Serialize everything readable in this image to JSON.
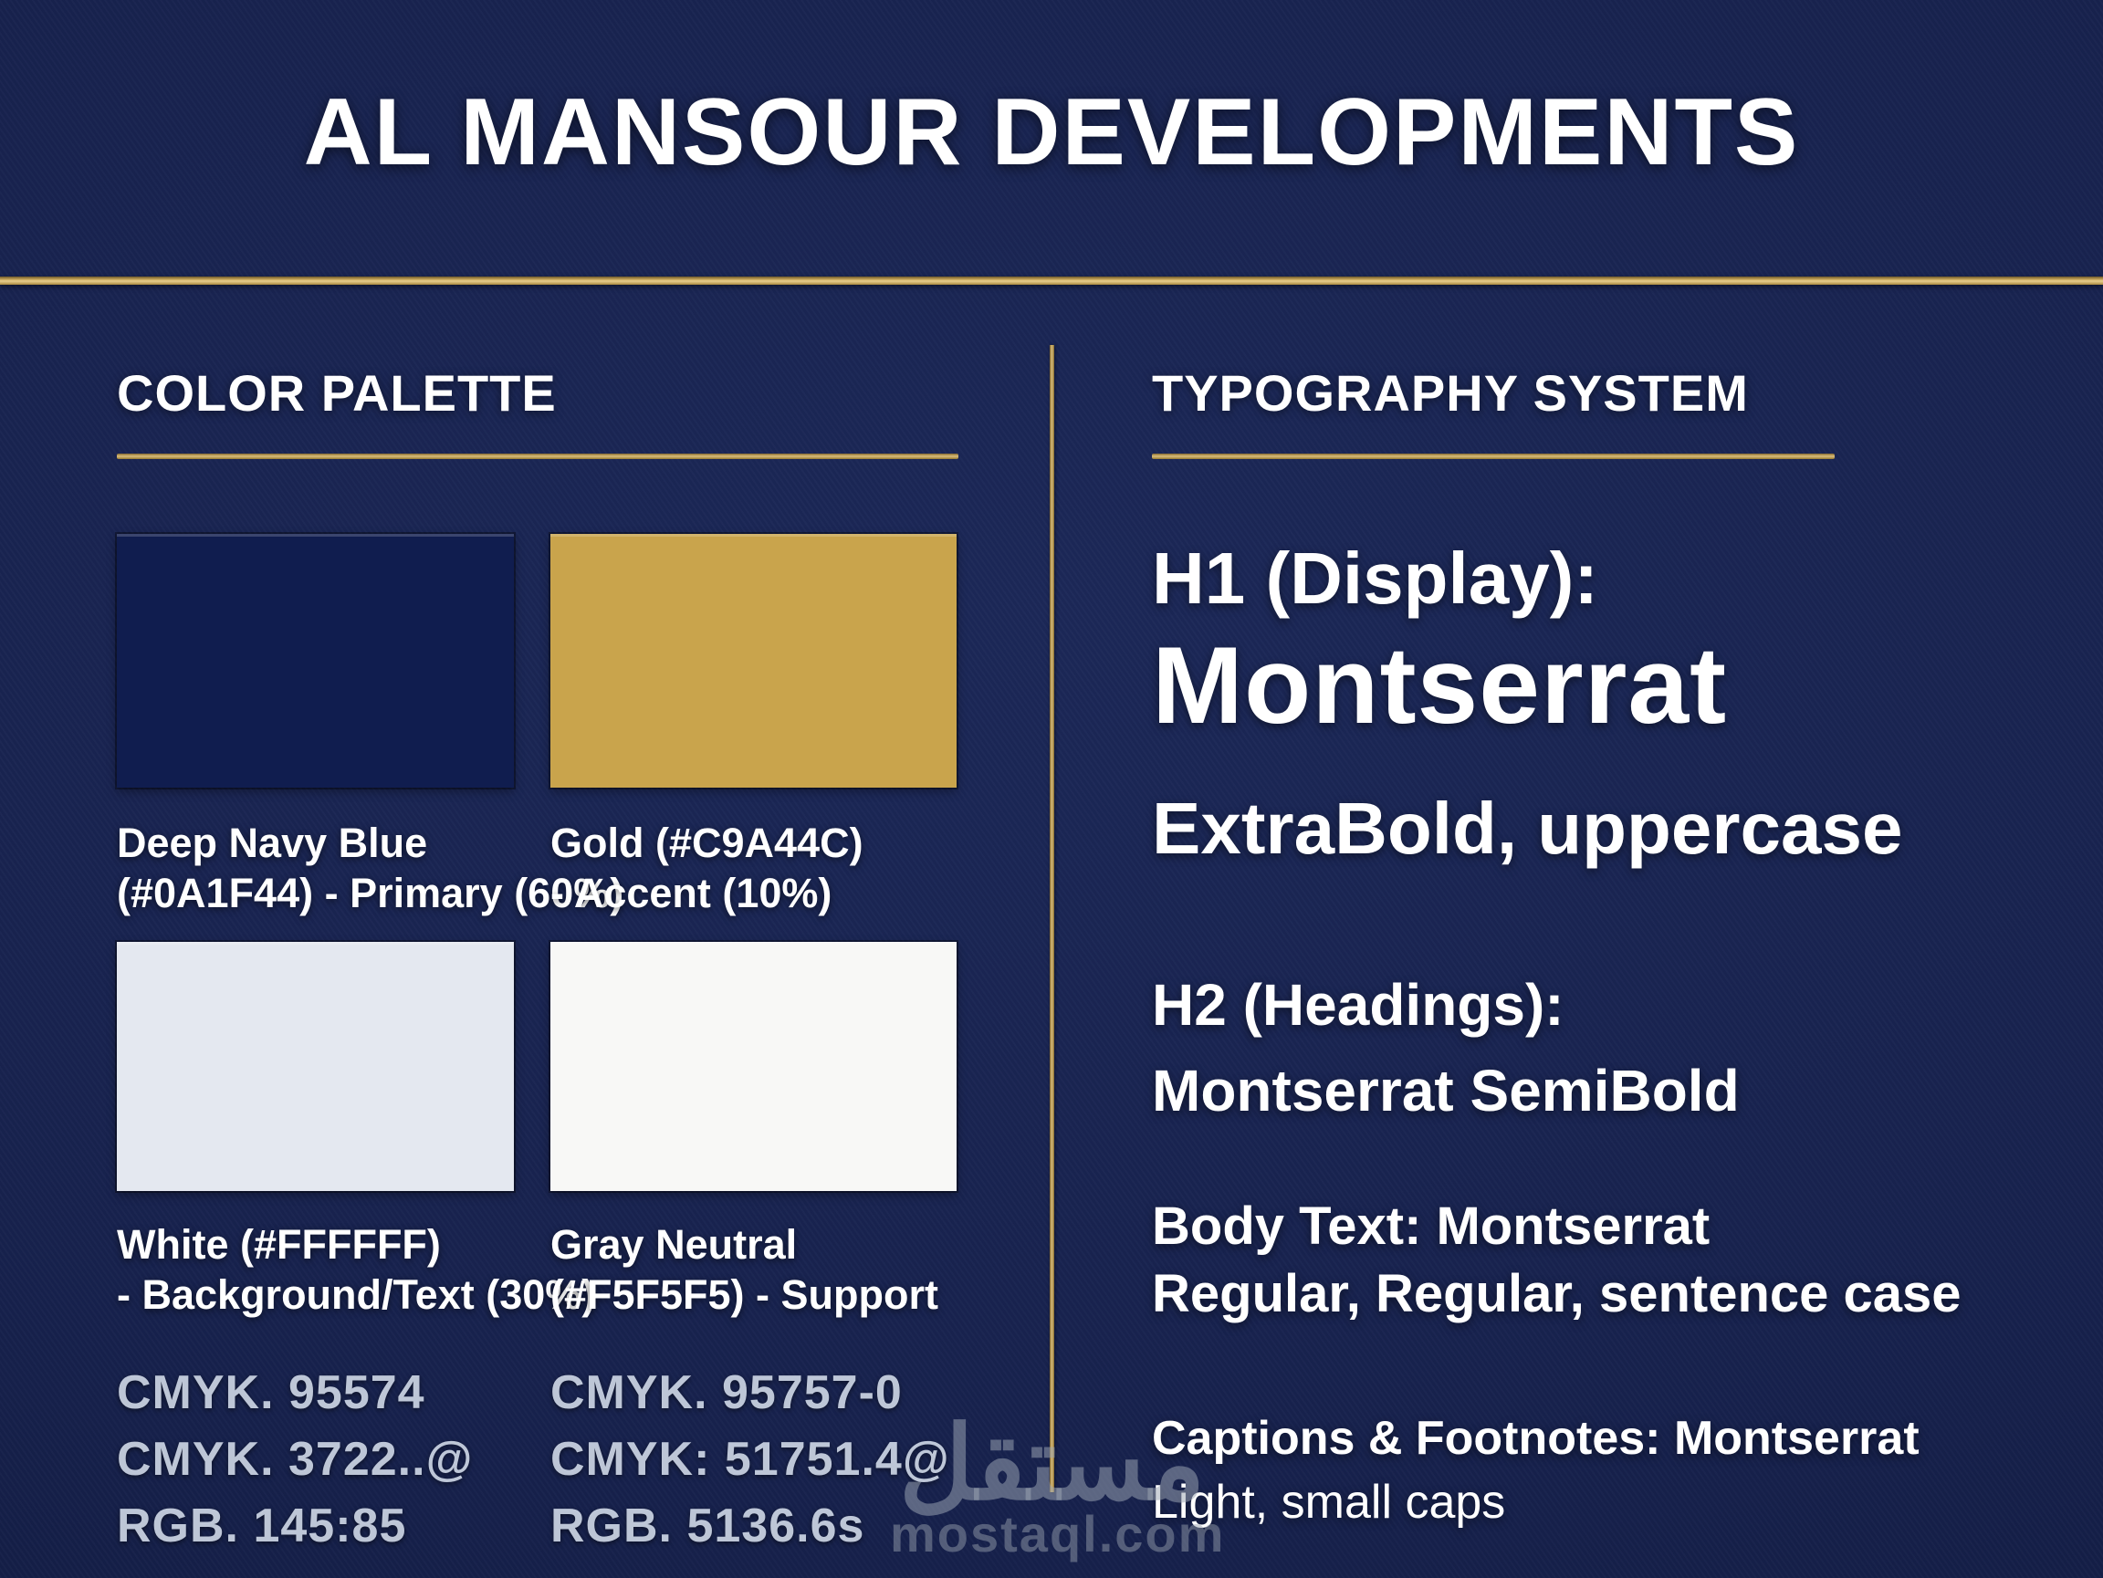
{
  "title": "AL MANSOUR DEVELOPMENTS",
  "color_palette": {
    "heading": "COLOR PALETTE",
    "swatches": [
      {
        "name_line1": "Deep Navy Blue",
        "name_line2": "(#0A1F44) - Primary (60%)",
        "fill": "#101d4f",
        "hex": "#0A1F44",
        "role": "Primary",
        "usage": "60%"
      },
      {
        "name_line1": "Gold (#C9A44C)",
        "name_line2": "- Accent (10%)",
        "fill": "#c9a44c",
        "hex": "#C9A44C",
        "role": "Accent",
        "usage": "10%"
      },
      {
        "name_line1": "White (#FFFFFF)",
        "name_line2": "- Background/Text (30%)",
        "fill": "#e4e8f0",
        "hex": "#FFFFFF",
        "role": "Background/Text",
        "usage": "30%"
      },
      {
        "name_line1": "Gray Neutral",
        "name_line2": "(#F5F5F5) - Support",
        "fill": "#f8f8f6",
        "hex": "#F5F5F5",
        "role": "Support"
      }
    ],
    "specs_left": [
      "CMYK. 95574",
      "CMYK. 3722..@",
      "RGB. 145:85"
    ],
    "specs_right": [
      "CMYK. 95757-0",
      "CMYK: 51751.4@",
      "RGB. 5136.6s"
    ]
  },
  "typography": {
    "heading": "TYPOGRAPHY SYSTEM",
    "h1_label": "H1 (Display):",
    "h1_font": "Montserrat",
    "h1_style": "ExtraBold, uppercase",
    "h2_label": "H2 (Headings):",
    "h2_font": "Montserrat SemiBold",
    "body_line1": "Body Text: Montserrat",
    "body_line2": "Regular, Regular, sentence case",
    "captions_line1": "Captions & Footnotes: Montserrat",
    "captions_line2": "Light, small caps"
  },
  "watermark": {
    "arabic": "مستقل",
    "domain": "mostaql.com"
  },
  "colors": {
    "background_navy": "#17224E",
    "accent_gold": "#C9A44C",
    "text_white": "#FFFFFF",
    "specs_text": "#D6DFEE",
    "watermark_gray": "#9EA6B4"
  }
}
